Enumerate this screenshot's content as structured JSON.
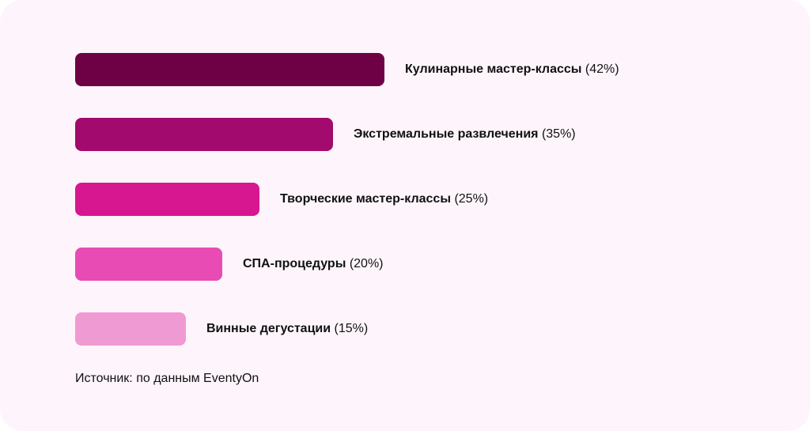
{
  "chart_data": {
    "type": "bar",
    "orientation": "horizontal",
    "categories": [
      "Кулинарные мастер-классы",
      "Экстремальные развлечения",
      "Творческие мастер-классы",
      "СПА-процедуры",
      "Винные дегустации"
    ],
    "values": [
      42,
      35,
      25,
      20,
      15
    ],
    "value_labels": [
      "(42%)",
      "(35%)",
      "(25%)",
      "(20%)",
      "(15%)"
    ],
    "colors": [
      "#6e0045",
      "#a20a6d",
      "#d6178f",
      "#e84cb4",
      "#f09ad3"
    ],
    "grid": false,
    "legend": "none"
  },
  "source": "Источник: по данным EventyOn"
}
